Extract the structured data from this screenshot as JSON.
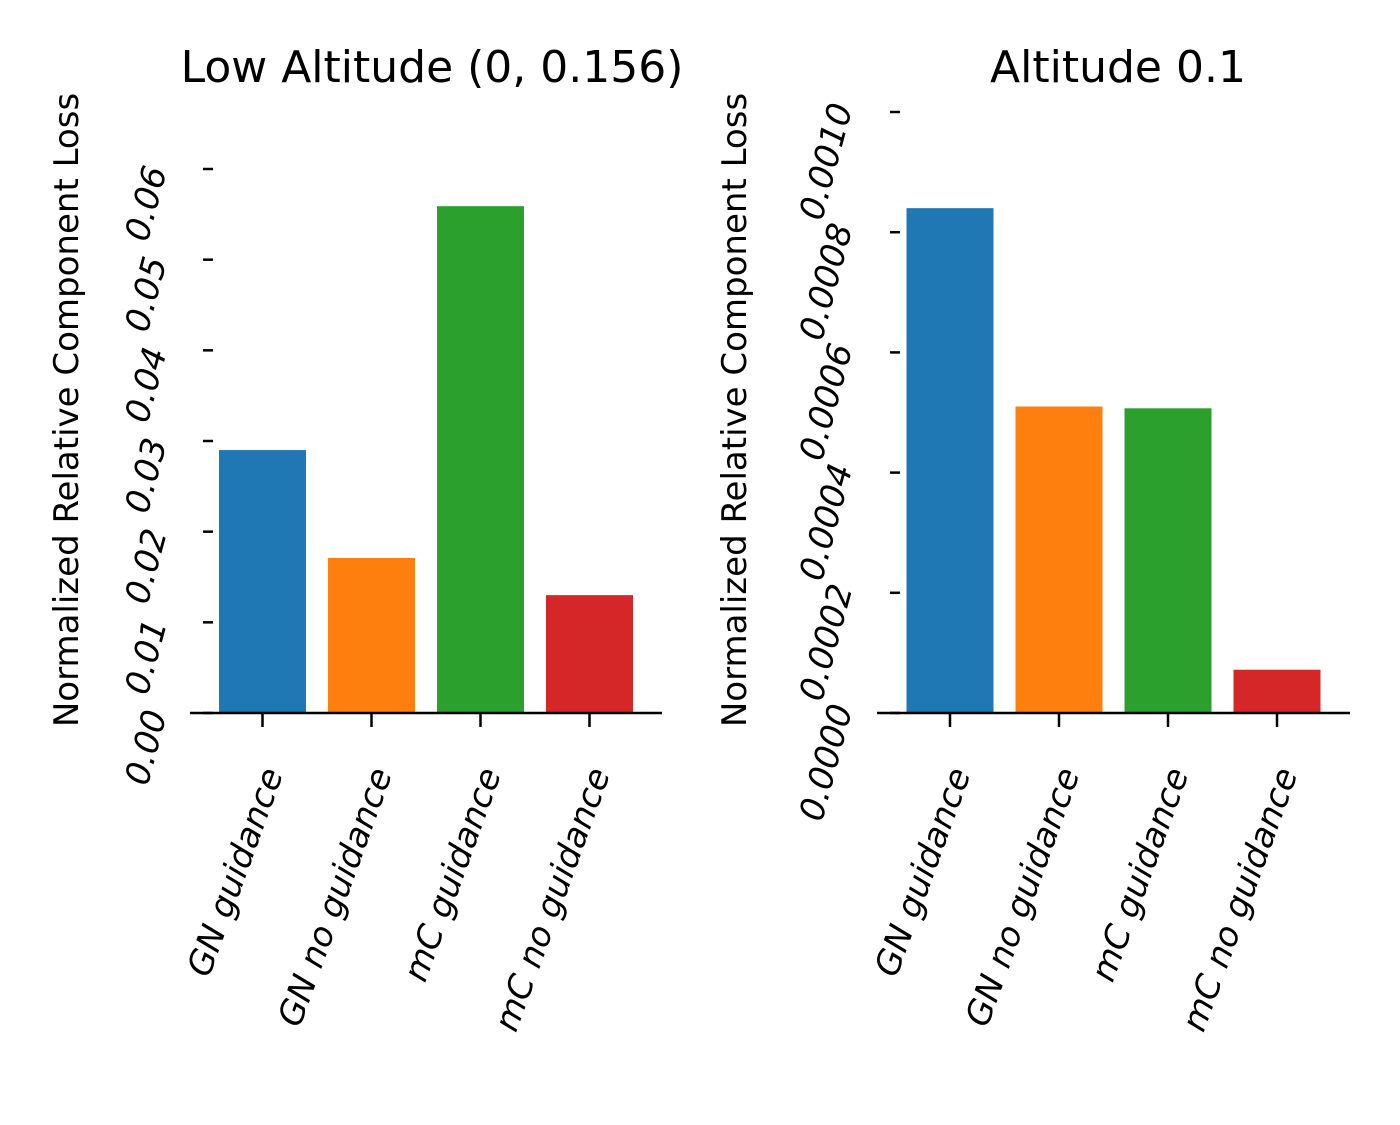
{
  "chart_data": [
    {
      "type": "bar",
      "title": "Low Altitude (0, 0.156)",
      "ylabel": "Normalized Relative Component Loss",
      "categories": [
        "GN guidance",
        "GN no guidance",
        "mC guidance",
        "mC no guidance"
      ],
      "values": [
        0.029,
        0.0171,
        0.0559,
        0.013
      ],
      "colors": [
        "#1f77b4",
        "#ff7f0e",
        "#2ca02c",
        "#d62728"
      ],
      "yticks": [
        "0.00",
        "0.01",
        "0.02",
        "0.03",
        "0.04",
        "0.05",
        "0.06"
      ],
      "ylim": [
        0,
        0.06
      ],
      "grid": false
    },
    {
      "type": "bar",
      "title": "Altitude 0.1",
      "ylabel": "Normalized Relative Component Loss",
      "categories": [
        "GN guidance",
        "GN no guidance",
        "mC guidance",
        "mC no guidance"
      ],
      "values": [
        0.00084,
        0.00051,
        0.000507,
        7.2e-05
      ],
      "colors": [
        "#1f77b4",
        "#ff7f0e",
        "#2ca02c",
        "#d62728"
      ],
      "yticks": [
        "0.0000",
        "0.0002",
        "0.0004",
        "0.0006",
        "0.0008",
        "0.0010"
      ],
      "ylim": [
        0,
        0.001
      ],
      "grid": false
    }
  ]
}
